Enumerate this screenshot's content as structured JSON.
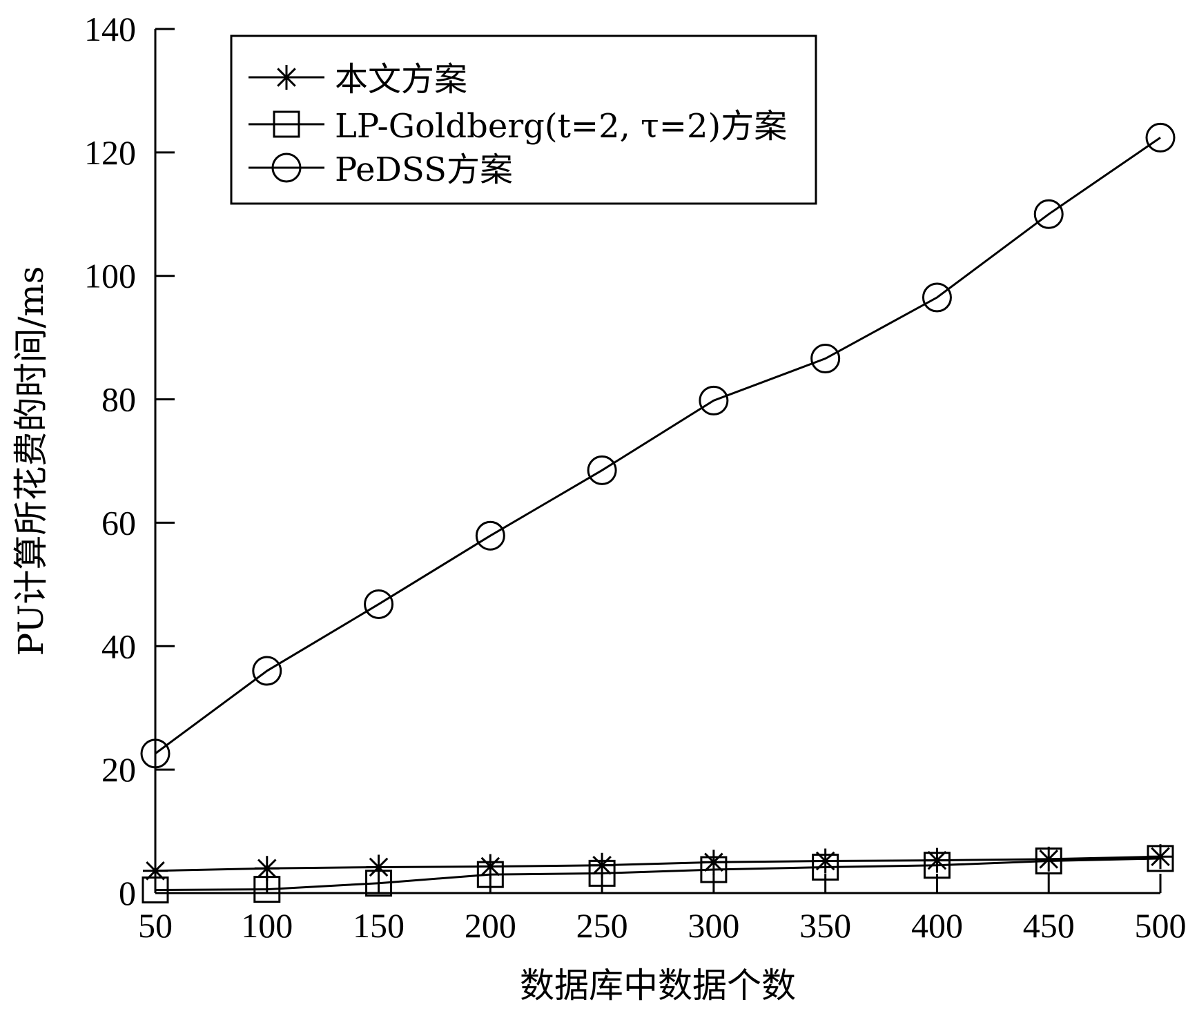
{
  "chart_data": {
    "type": "line",
    "xlabel": "数据库中数据个数",
    "ylabel": "PU计算所花费的时间/ms",
    "x": [
      50,
      100,
      150,
      200,
      250,
      300,
      350,
      400,
      450,
      500
    ],
    "xlim": [
      50,
      500
    ],
    "ylim": [
      0,
      140
    ],
    "xticks": [
      50,
      100,
      150,
      200,
      250,
      300,
      350,
      400,
      450,
      500
    ],
    "yticks": [
      0,
      20,
      40,
      60,
      80,
      100,
      120,
      140
    ],
    "grid": false,
    "legend_position": "top-left",
    "series": [
      {
        "name": "本文方案",
        "marker": "asterisk",
        "values": [
          3.6,
          4.0,
          4.2,
          4.3,
          4.5,
          5.0,
          5.2,
          5.3,
          5.5,
          5.9
        ]
      },
      {
        "name": "LP-Goldberg(t=2, τ=2)方案",
        "marker": "square",
        "values": [
          0.5,
          0.6,
          1.6,
          3.0,
          3.2,
          3.8,
          4.2,
          4.5,
          5.2,
          5.6
        ]
      },
      {
        "name": "PeDSS方案",
        "marker": "circle",
        "values": [
          22.6,
          36.0,
          46.8,
          57.9,
          68.5,
          79.8,
          86.6,
          96.5,
          110.0,
          122.4
        ]
      }
    ]
  }
}
